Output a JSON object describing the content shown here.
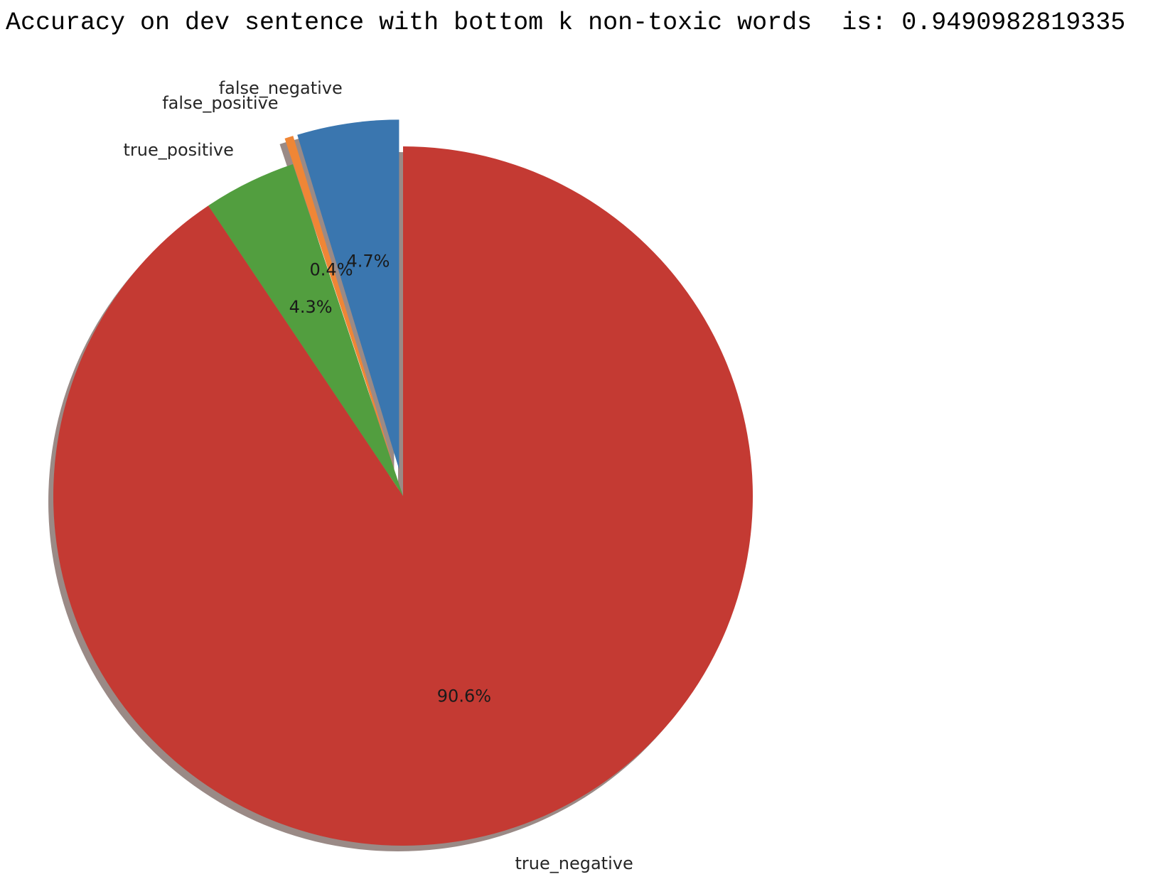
{
  "output_text": "Accuracy on dev sentence with bottom k non-toxic words  is: 0.9490982819335",
  "chart_data": {
    "type": "pie",
    "shadow": true,
    "start_angle_deg": 90,
    "direction": "counterclockwise",
    "slices": [
      {
        "label": "false_negative",
        "value": 4.7,
        "pct_label": "4.7%",
        "color": "#3a76af",
        "exploded": true
      },
      {
        "label": "false_positive",
        "value": 0.4,
        "pct_label": "0.4%",
        "color": "#ef8636",
        "exploded": true
      },
      {
        "label": "true_positive",
        "value": 4.3,
        "pct_label": "4.3%",
        "color": "#529e3f",
        "exploded": false
      },
      {
        "label": "true_negative",
        "value": 90.6,
        "pct_label": "90.6%",
        "color": "#c43a33",
        "exploded": false
      }
    ]
  }
}
